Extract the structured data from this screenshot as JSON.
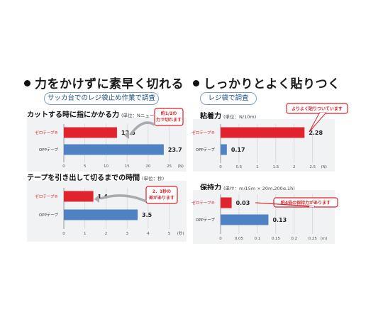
{
  "left": {
    "headline": "力をかけずに素早く切れる",
    "survey_label": "サッカ台でのレジ袋止め作業で調査"
  },
  "right": {
    "headline": "しっかりとよく貼りつく",
    "survey_label": "レジ袋で調査"
  },
  "colors": {
    "red": "#e0232d",
    "blue": "#4f82c2",
    "callout": "#d7232c"
  },
  "chart_data": [
    {
      "type": "bar",
      "title": "カットする時に指にかかる力",
      "unit_label": "(単位：Nニュートン)",
      "categories": [
        "ゼロテープ®",
        "OPPテープ"
      ],
      "values": [
        12.6,
        23.7
      ],
      "value_labels": [
        "12.6",
        "23.7"
      ],
      "xlim": [
        0,
        30
      ],
      "ticks": [
        "0",
        "5",
        "10",
        "15",
        "20",
        "25",
        "(N)"
      ],
      "callout": [
        "約1/2の",
        "力で切れます"
      ]
    },
    {
      "type": "bar",
      "title": "テープを引き出して切るまでの時間",
      "unit_label": "(単位：秒)",
      "categories": [
        "ゼロテープ®",
        "OPPテープ"
      ],
      "values": [
        1.4,
        3.5
      ],
      "value_labels": [
        "1.4",
        "3.5"
      ],
      "xlim": [
        0,
        6
      ],
      "ticks": [
        "0",
        "1",
        "2",
        "3",
        "4",
        "5",
        "(秒)"
      ],
      "callout": [
        "2．1秒の",
        "差があります"
      ]
    },
    {
      "type": "bar",
      "title": "粘着力",
      "unit_label": "(単位：N/10m)",
      "categories": [
        "ゼロテープ®",
        "OPPテープ"
      ],
      "values": [
        2.28,
        0.17
      ],
      "value_labels": [
        "2.28",
        "0.17"
      ],
      "xlim": [
        0,
        2.5
      ],
      "ticks": [
        "0",
        "0.5",
        "1",
        "1.5",
        "2",
        "2.5",
        "(N)"
      ],
      "callout": [
        "よりよく貼りついています"
      ]
    },
    {
      "type": "bar",
      "title": "保持力",
      "unit_label": "(単位：m/15m × 20m,200g,1h)",
      "categories": [
        "ゼロテープ®",
        "OPPテープ"
      ],
      "values": [
        0.03,
        0.13
      ],
      "value_labels": [
        "0.03",
        "0.13"
      ],
      "xlim": [
        0,
        0.25
      ],
      "ticks": [
        "0",
        "0.05",
        "0.1",
        "0.15",
        "0.2",
        "0.25",
        "(m)"
      ],
      "callout": [
        "約4倍の保持力があります"
      ]
    }
  ]
}
